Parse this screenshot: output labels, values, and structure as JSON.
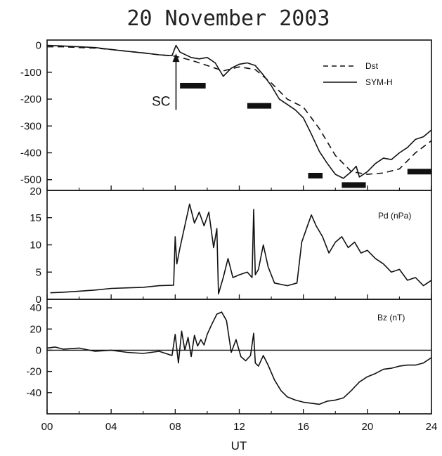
{
  "title": "20 November 2003",
  "xlabel": "UT",
  "x_ticks": [
    "00",
    "04",
    "08",
    "12",
    "16",
    "20",
    "24"
  ],
  "chart_data": [
    {
      "type": "line",
      "panel": "top",
      "xlim": [
        0,
        24
      ],
      "ylim": [
        -540,
        20
      ],
      "y_ticks": [
        0,
        -100,
        -200,
        -300,
        -400,
        -500
      ],
      "top_tick_label": "20",
      "legend_position": "top-right",
      "annotation": {
        "text": "SC",
        "x": 8.05,
        "y_from": -240,
        "y_to": -30
      },
      "series": [
        {
          "name": "Dst",
          "style": "dashed",
          "x": [
            0,
            1,
            2,
            3,
            4,
            5,
            6,
            7,
            8,
            9,
            10,
            11,
            12,
            13,
            14,
            15,
            16,
            17,
            18,
            19,
            20,
            21,
            22,
            23,
            24
          ],
          "y": [
            -5,
            -5,
            -8,
            -10,
            -15,
            -22,
            -28,
            -35,
            -40,
            -55,
            -75,
            -95,
            -80,
            -90,
            -140,
            -200,
            -230,
            -310,
            -410,
            -470,
            -480,
            -475,
            -460,
            -400,
            -355
          ]
        },
        {
          "name": "SYM-H",
          "style": "solid",
          "x": [
            0,
            1,
            2,
            3,
            4,
            5,
            6,
            7,
            7.8,
            8.05,
            8.3,
            9,
            9.5,
            10,
            10.5,
            11,
            11.5,
            12,
            12.5,
            13,
            13.5,
            14,
            14.5,
            15,
            15.5,
            16,
            16.5,
            17,
            17.5,
            18,
            18.5,
            19,
            19.3,
            19.5,
            20,
            20.5,
            21,
            21.5,
            22,
            22.5,
            23,
            23.5,
            24
          ],
          "y": [
            0,
            -2,
            -5,
            -8,
            -15,
            -22,
            -28,
            -35,
            -38,
            0,
            -25,
            -45,
            -50,
            -45,
            -65,
            -115,
            -85,
            -70,
            -65,
            -75,
            -110,
            -150,
            -200,
            -220,
            -240,
            -270,
            -330,
            -395,
            -440,
            -480,
            -495,
            -470,
            -450,
            -490,
            -470,
            -440,
            -420,
            -425,
            -400,
            -380,
            -350,
            -340,
            -315
          ]
        }
      ],
      "intervals": [
        {
          "x0": 8.3,
          "x1": 9.9,
          "y": -150
        },
        {
          "x0": 12.5,
          "x1": 14.0,
          "y": -225
        },
        {
          "x0": 16.3,
          "x1": 17.2,
          "y": -485
        },
        {
          "x0": 18.4,
          "x1": 19.9,
          "y": -520
        },
        {
          "x0": 22.5,
          "x1": 24.0,
          "y": -470
        }
      ]
    },
    {
      "type": "line",
      "panel": "middle",
      "xlim": [
        0,
        24
      ],
      "ylim": [
        0,
        20
      ],
      "y_ticks": [
        0,
        5,
        10,
        15
      ],
      "series": [
        {
          "name": "Pd (nPa)",
          "style": "solid",
          "x": [
            0.2,
            1,
            2,
            3,
            4,
            5,
            6,
            7,
            7.9,
            8.0,
            8.1,
            8.3,
            8.6,
            8.9,
            9.2,
            9.5,
            9.8,
            10.1,
            10.4,
            10.6,
            10.7,
            11,
            11.3,
            11.6,
            12,
            12.5,
            12.8,
            12.9,
            13.0,
            13.2,
            13.5,
            13.8,
            14.2,
            15,
            15.6,
            15.9,
            16.2,
            16.5,
            16.8,
            17.2,
            17.6,
            18,
            18.4,
            18.8,
            19.2,
            19.6,
            20,
            20.5,
            21,
            21.5,
            22,
            22.5,
            23,
            23.5,
            24
          ],
          "y": [
            1.2,
            1.3,
            1.5,
            1.7,
            2.0,
            2.1,
            2.2,
            2.5,
            2.6,
            11.5,
            6.5,
            9.5,
            13.5,
            17.5,
            14.0,
            16.0,
            13.5,
            16.0,
            9.5,
            13.0,
            1.0,
            4.0,
            7.5,
            4.0,
            4.5,
            5.0,
            4.0,
            16.5,
            4.5,
            5.5,
            10.0,
            6.0,
            3.0,
            2.5,
            3.0,
            10.5,
            13.0,
            15.5,
            13.5,
            11.5,
            8.5,
            10.5,
            11.5,
            9.5,
            10.5,
            8.5,
            9.0,
            7.5,
            6.5,
            5.0,
            5.5,
            3.5,
            4.0,
            2.5,
            3.5
          ]
        }
      ]
    },
    {
      "type": "line",
      "panel": "bottom",
      "xlim": [
        0,
        24
      ],
      "ylim": [
        -60,
        48
      ],
      "y_ticks": [
        40,
        20,
        0,
        -20,
        -40
      ],
      "zero_line": true,
      "series": [
        {
          "name": "Bz (nT)",
          "style": "solid",
          "x": [
            0,
            0.5,
            1,
            2,
            3,
            4,
            5,
            6,
            7,
            7.8,
            8.0,
            8.2,
            8.4,
            8.6,
            8.8,
            9.0,
            9.2,
            9.4,
            9.6,
            9.8,
            10.0,
            10.3,
            10.6,
            10.9,
            11.2,
            11.5,
            11.8,
            12.1,
            12.4,
            12.7,
            12.9,
            13.0,
            13.2,
            13.5,
            13.8,
            14.2,
            14.6,
            15,
            15.5,
            16,
            16.5,
            17,
            17.5,
            18,
            18.5,
            19,
            19.5,
            20,
            20.5,
            21,
            21.5,
            22,
            22.5,
            23,
            23.5,
            24
          ],
          "y": [
            2,
            3,
            1,
            2,
            -1,
            0,
            -2,
            -3,
            -1,
            -5,
            15,
            -12,
            18,
            0,
            12,
            -6,
            14,
            4,
            10,
            5,
            15,
            25,
            34,
            36,
            28,
            -2,
            10,
            -6,
            -10,
            -5,
            16,
            -12,
            -15,
            -5,
            -14,
            -28,
            -38,
            -44,
            -47,
            -49,
            -50,
            -51,
            -48,
            -47,
            -45,
            -38,
            -30,
            -25,
            -22,
            -18,
            -17,
            -15,
            -14,
            -14,
            -12,
            -7
          ]
        }
      ]
    }
  ]
}
